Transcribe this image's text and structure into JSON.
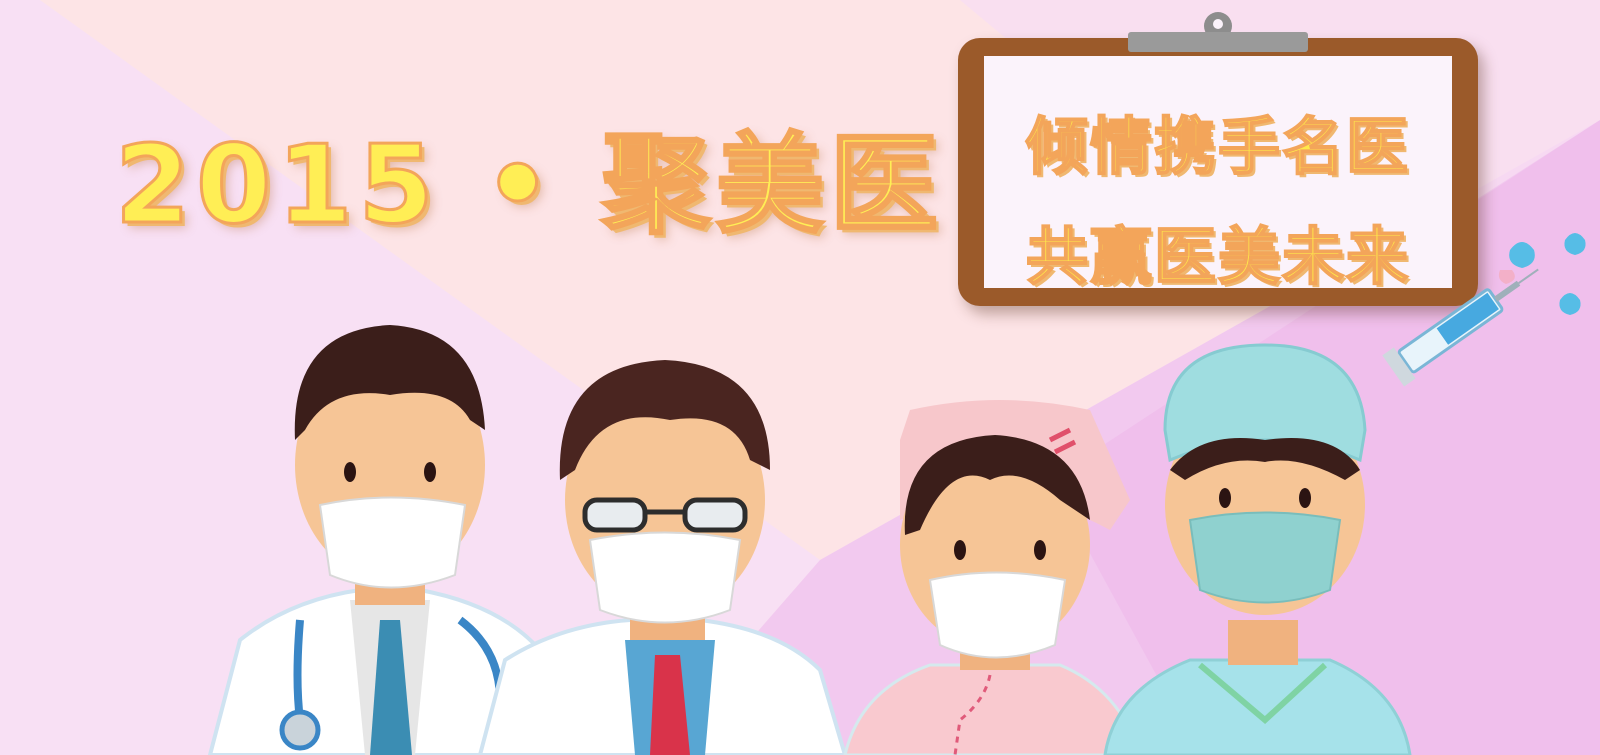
{
  "banner": {
    "headline": "2015 • 聚美医",
    "slogan_line1": "倾情携手名医",
    "slogan_line2": "共赢医美未来"
  },
  "colors": {
    "title_fill": "#ffee55",
    "title_outline": "#f3a55a",
    "board_frame": "#9b5a2a",
    "board_paper": "#fbf3fb",
    "background_pink": "#f7dff0",
    "background_peach": "#fde4e6",
    "background_violet": "#f0b8ec"
  },
  "icons": [
    "clipboard-icon",
    "syringe-icon",
    "water-drop-icon",
    "stethoscope-icon"
  ],
  "illustration": {
    "figures": [
      "doctor-with-stethoscope",
      "doctor-with-glasses",
      "nurse-in-cap",
      "surgeon-in-scrubs"
    ]
  }
}
